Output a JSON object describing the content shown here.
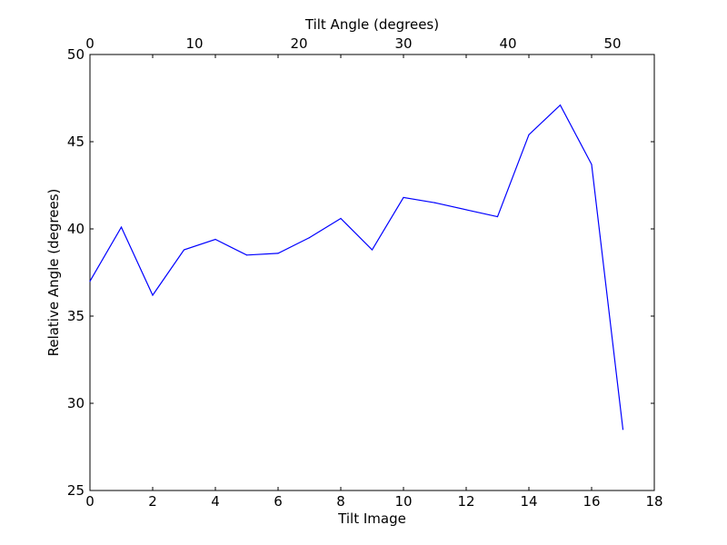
{
  "chart_data": {
    "type": "line",
    "xlabel": "Tilt Image",
    "ylabel": "Relative Angle (degrees)",
    "top_xlabel": "Tilt Angle (degrees)",
    "xlim": [
      0,
      18
    ],
    "ylim": [
      25,
      50
    ],
    "top_xlim": [
      0,
      54
    ],
    "x_ticks": [
      0,
      2,
      4,
      6,
      8,
      10,
      12,
      14,
      16,
      18
    ],
    "y_ticks": [
      25,
      30,
      35,
      40,
      45,
      50
    ],
    "top_x_ticks": [
      0,
      10,
      20,
      30,
      40,
      50
    ],
    "grid": false,
    "line_color": "#0000ff",
    "x": [
      0,
      1,
      2,
      3,
      4,
      5,
      6,
      7,
      8,
      9,
      10,
      11,
      12,
      13,
      14,
      15,
      16,
      17
    ],
    "values": [
      37.0,
      40.1,
      36.2,
      38.8,
      39.4,
      38.5,
      38.6,
      39.5,
      40.6,
      38.8,
      41.8,
      41.5,
      41.1,
      40.7,
      45.4,
      47.1,
      43.7,
      28.5
    ]
  }
}
